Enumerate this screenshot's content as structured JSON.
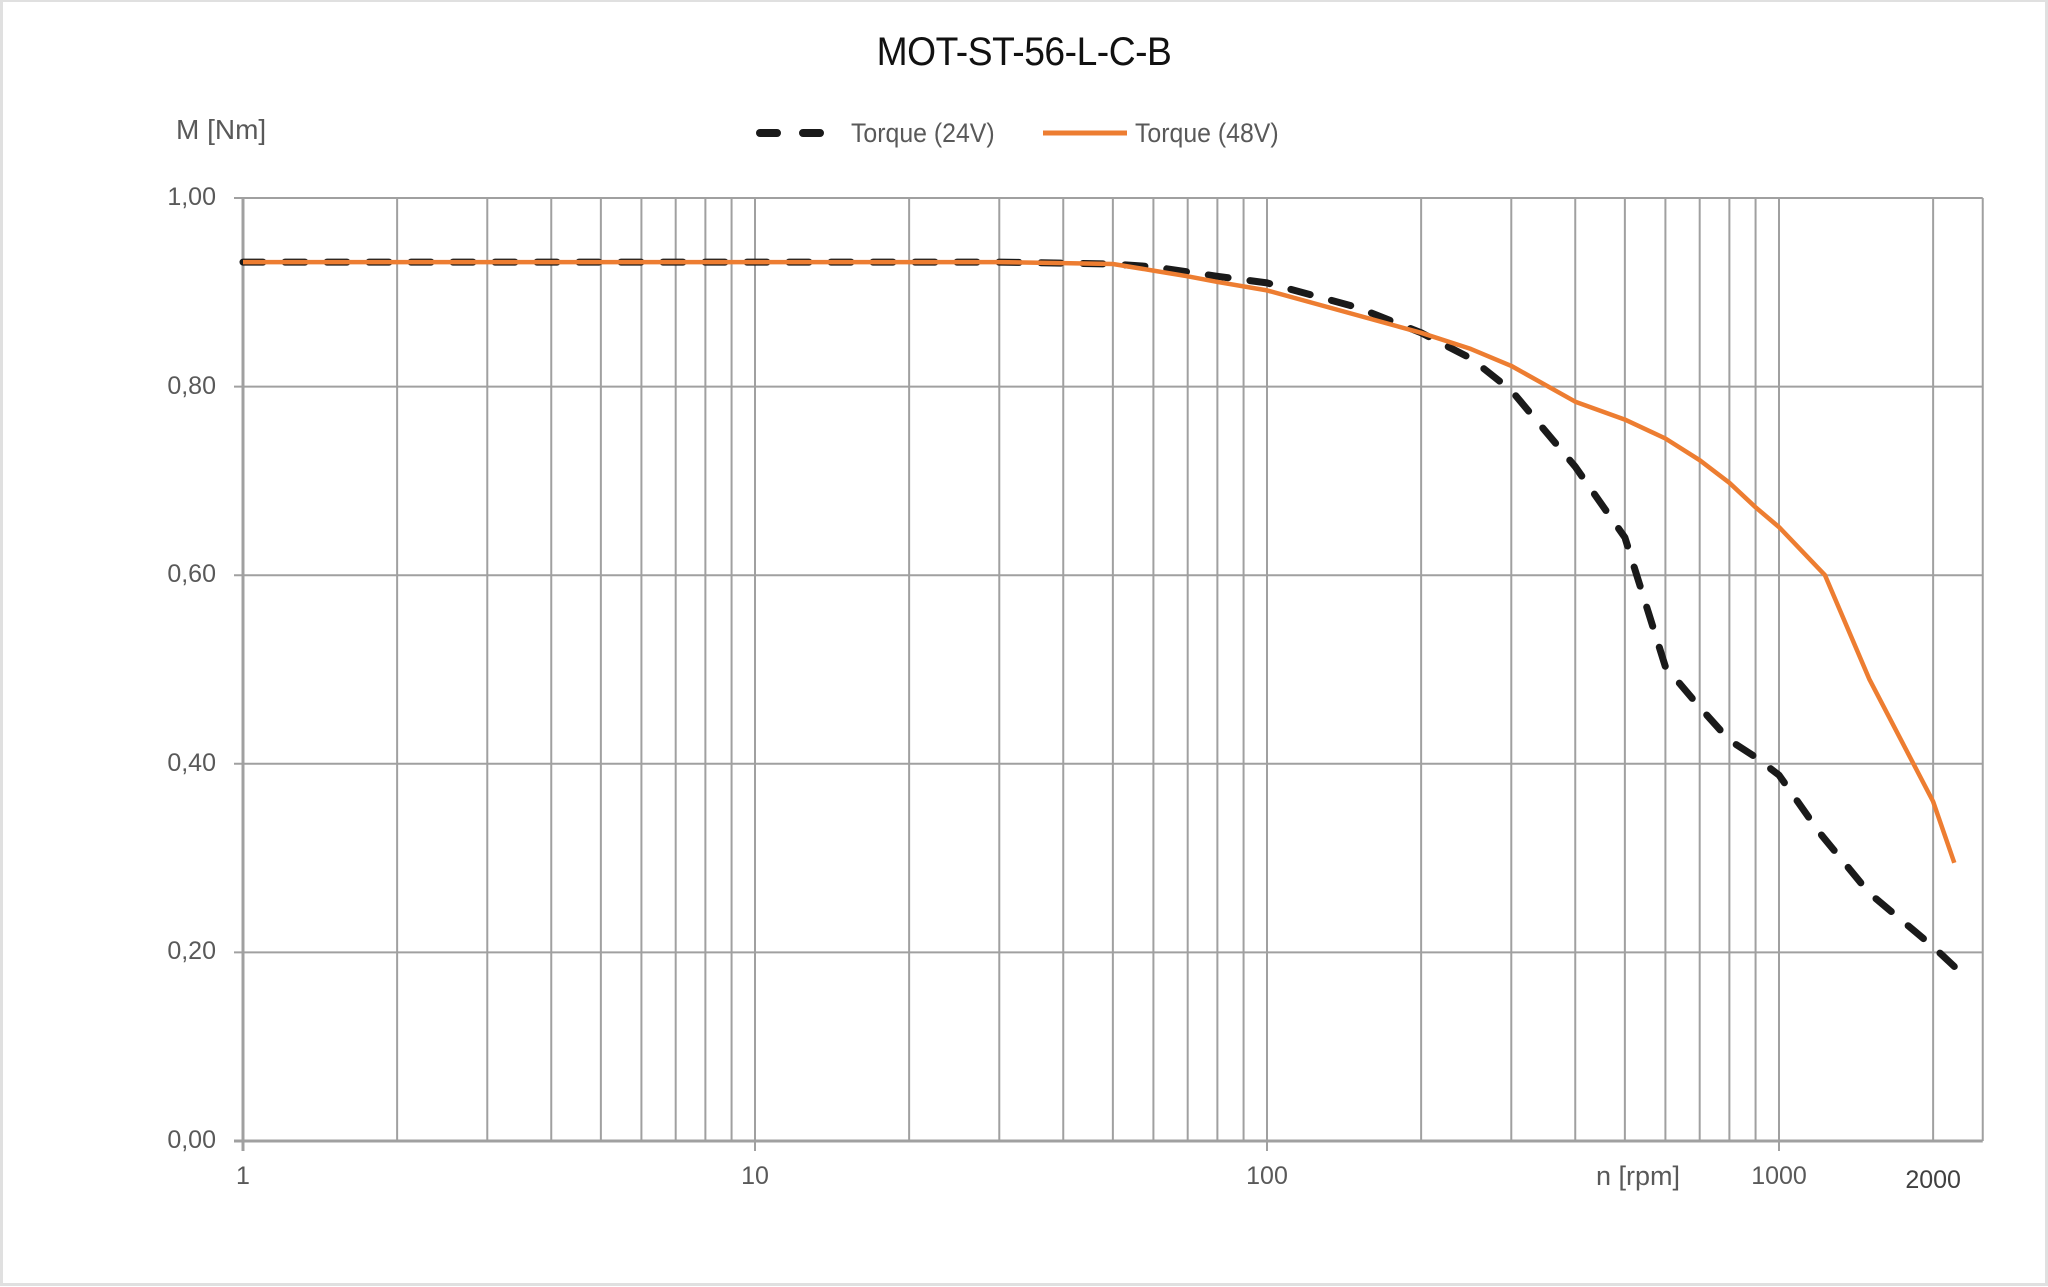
{
  "chart_data": {
    "type": "line",
    "title": "MOT-ST-56-L-C-B",
    "xlabel": "n [rpm]",
    "ylabel": "M [Nm]",
    "x_scale": "log",
    "xlim": [
      1,
      2500
    ],
    "ylim": [
      0,
      1.0
    ],
    "grid": true,
    "legend_position": "top",
    "y_ticks": [
      {
        "value": 0.0,
        "label": "0,00"
      },
      {
        "value": 0.2,
        "label": "0,20"
      },
      {
        "value": 0.4,
        "label": "0,40"
      },
      {
        "value": 0.6,
        "label": "0,60"
      },
      {
        "value": 0.8,
        "label": "0,80"
      },
      {
        "value": 1.0,
        "label": "1,00"
      }
    ],
    "x_tick_labels": [
      {
        "value": 1,
        "label": "1"
      },
      {
        "value": 10,
        "label": "10"
      },
      {
        "value": 100,
        "label": "100"
      },
      {
        "value": 1000,
        "label": "1000"
      },
      {
        "value": 2000,
        "label": "2000"
      }
    ],
    "x_minor_gridlines": [
      2,
      3,
      4,
      5,
      6,
      7,
      8,
      9,
      20,
      30,
      40,
      50,
      60,
      70,
      80,
      90,
      200,
      300,
      400,
      500,
      600,
      700,
      800,
      900,
      2000
    ],
    "series": [
      {
        "name": "Torque (24V)",
        "color": "#1a1a1a",
        "style": "dashed",
        "points": [
          [
            1,
            0.932
          ],
          [
            10,
            0.932
          ],
          [
            30,
            0.932
          ],
          [
            50,
            0.93
          ],
          [
            60,
            0.927
          ],
          [
            80,
            0.917
          ],
          [
            100,
            0.91
          ],
          [
            150,
            0.884
          ],
          [
            200,
            0.857
          ],
          [
            250,
            0.83
          ],
          [
            300,
            0.796
          ],
          [
            400,
            0.715
          ],
          [
            500,
            0.64
          ],
          [
            600,
            0.503
          ],
          [
            700,
            0.46
          ],
          [
            800,
            0.425
          ],
          [
            900,
            0.407
          ],
          [
            1000,
            0.388
          ],
          [
            1200,
            0.327
          ],
          [
            1500,
            0.263
          ],
          [
            2000,
            0.206
          ],
          [
            2200,
            0.185
          ]
        ]
      },
      {
        "name": "Torque (48V)",
        "color": "#ed7d31",
        "style": "solid",
        "points": [
          [
            1,
            0.932
          ],
          [
            10,
            0.932
          ],
          [
            30,
            0.932
          ],
          [
            40,
            0.931
          ],
          [
            50,
            0.93
          ],
          [
            60,
            0.923
          ],
          [
            70,
            0.917
          ],
          [
            80,
            0.911
          ],
          [
            100,
            0.902
          ],
          [
            200,
            0.857
          ],
          [
            250,
            0.84
          ],
          [
            300,
            0.822
          ],
          [
            400,
            0.784
          ],
          [
            500,
            0.765
          ],
          [
            600,
            0.745
          ],
          [
            700,
            0.722
          ],
          [
            800,
            0.698
          ],
          [
            900,
            0.672
          ],
          [
            1000,
            0.651
          ],
          [
            1230,
            0.6
          ],
          [
            1500,
            0.49
          ],
          [
            2000,
            0.36
          ],
          [
            2200,
            0.295
          ]
        ]
      }
    ]
  }
}
